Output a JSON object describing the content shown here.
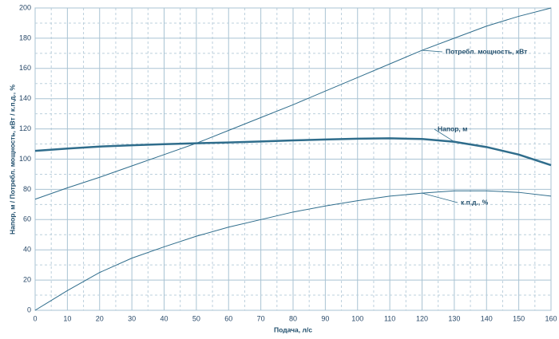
{
  "chart_data": {
    "type": "line",
    "xlabel": "Подача,  л/с",
    "ylabel": "Напор, м     /     Потребл. мощность, кВт     /     к.п.д., %",
    "x": [
      0,
      10,
      20,
      30,
      40,
      50,
      60,
      70,
      80,
      90,
      100,
      110,
      120,
      130,
      140,
      150,
      160
    ],
    "series": [
      {
        "name": "Потребл. мощность, кВт",
        "color": "#2f6d8c",
        "values": [
          73.5,
          81,
          88,
          95.5,
          103,
          110.5,
          119,
          127.5,
          136,
          145,
          154,
          163,
          172,
          180,
          188,
          194.5,
          200
        ]
      },
      {
        "name": "Напор, м",
        "color": "#2f6d8c",
        "values": [
          105.5,
          107,
          108.3,
          109.2,
          109.9,
          110.5,
          111,
          111.7,
          112.4,
          113,
          113.5,
          113.8,
          113.3,
          111.5,
          108,
          103,
          96
        ]
      },
      {
        "name": "к.п.д.,  %",
        "color": "#2f6d8c",
        "values": [
          0,
          13,
          25,
          34.5,
          42,
          49,
          55,
          60,
          65,
          69,
          72.5,
          75.5,
          77.5,
          79,
          79,
          78,
          75.5
        ]
      }
    ],
    "xlim": [
      0,
      160
    ],
    "xticks": [
      0,
      10,
      20,
      30,
      40,
      50,
      60,
      70,
      80,
      90,
      100,
      110,
      120,
      130,
      140,
      150,
      160
    ],
    "ylim": [
      0,
      200
    ],
    "yticks": [
      0,
      20,
      40,
      60,
      80,
      100,
      120,
      140,
      160,
      180,
      200
    ],
    "grid": true
  }
}
